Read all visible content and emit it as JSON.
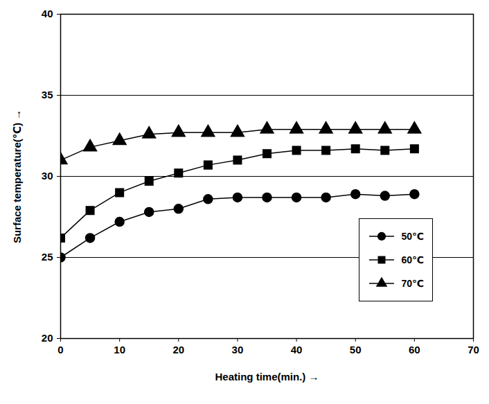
{
  "chart_data": {
    "type": "line",
    "x_label": "Heating time(min.)",
    "y_label": "Surface temperature(℃)",
    "x": [
      0,
      5,
      10,
      15,
      20,
      25,
      30,
      35,
      40,
      45,
      50,
      55,
      60
    ],
    "series": [
      {
        "name": "50℃",
        "color": "#000000",
        "marker": "circle",
        "values": [
          25.0,
          26.2,
          27.2,
          27.8,
          28.0,
          28.6,
          28.7,
          28.7,
          28.7,
          28.7,
          28.9,
          28.8,
          28.9
        ]
      },
      {
        "name": "60℃",
        "color": "#000000",
        "marker": "square",
        "values": [
          26.2,
          27.9,
          29.0,
          29.7,
          30.2,
          30.7,
          31.0,
          31.4,
          31.6,
          31.6,
          31.7,
          31.6,
          31.7
        ]
      },
      {
        "name": "70℃",
        "color": "#000000",
        "marker": "triangle",
        "values": [
          31.0,
          31.8,
          32.2,
          32.6,
          32.7,
          32.7,
          32.7,
          32.9,
          32.9,
          32.9,
          32.9,
          32.9,
          32.9
        ]
      }
    ],
    "xlim": [
      0,
      70
    ],
    "xticks": [
      0,
      10,
      20,
      30,
      40,
      50,
      60,
      70
    ],
    "ylim": [
      20,
      40
    ],
    "yticks": [
      20,
      25,
      30,
      35,
      40
    ],
    "grid": true,
    "legend": "lower right"
  }
}
